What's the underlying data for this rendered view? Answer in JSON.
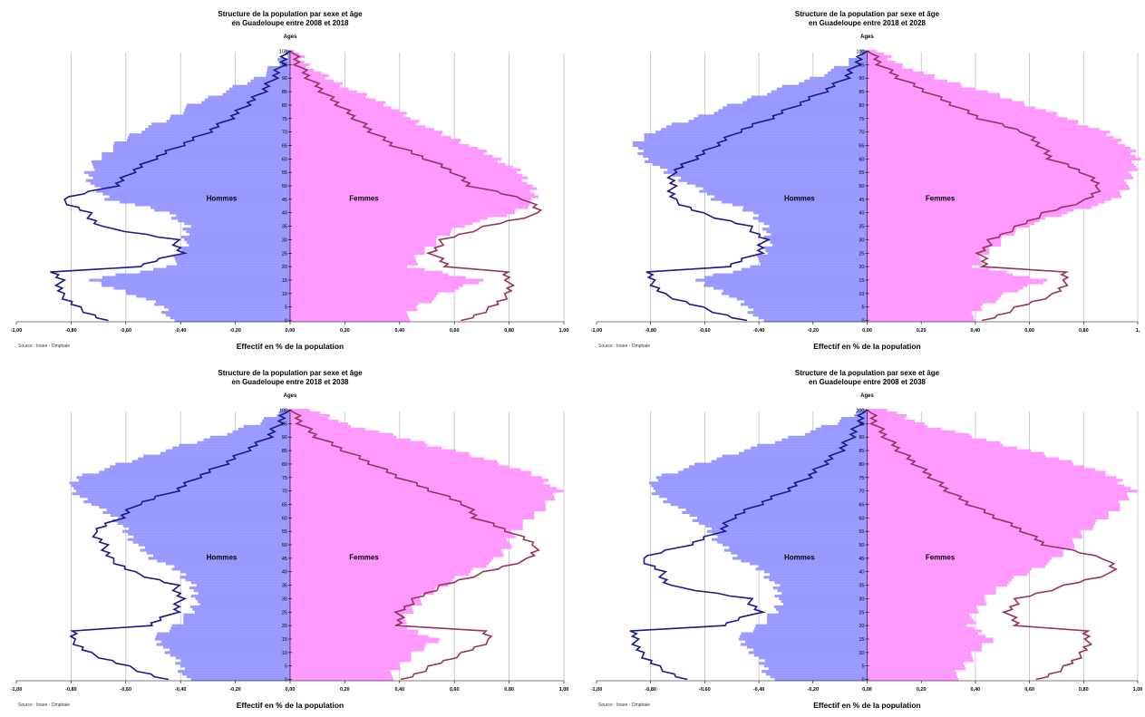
{
  "colors": {
    "men_bar": "#9999ff",
    "women_bar": "#ff99ff",
    "men_line": "#1a1a8a",
    "women_line": "#99335c",
    "grid": "#bfbfbf"
  },
  "chart_data": [
    {
      "type": "bar",
      "title_line1": "Structure de la population par sexe et âge",
      "title_line2": "en Guadeloupe entre 2008 et 2018",
      "age_axis_label": "Ages",
      "xlabel": "Effectif en % de la population",
      "source": "Source : Insee - Omphale",
      "x_ticks": [
        "-1,00",
        "-0,80",
        "-0,60",
        "-0,40",
        "-0,20",
        "0,00",
        "0,20",
        "0,40",
        "0,60",
        "0,80",
        "1,00"
      ],
      "age_ticks": [
        0,
        5,
        10,
        15,
        20,
        25,
        30,
        35,
        40,
        45,
        50,
        55,
        60,
        65,
        70,
        75,
        80,
        85,
        90,
        95,
        100
      ],
      "xlim": [
        -1,
        1
      ],
      "ylim": [
        0,
        100
      ],
      "men_label": "Hommes",
      "women_label": "Femmes",
      "men_bars": {
        "ages": [
          0,
          5,
          10,
          15,
          20,
          25,
          30,
          35,
          40,
          45,
          50,
          55,
          60,
          65,
          70,
          75,
          80,
          85,
          90,
          95,
          100
        ],
        "values": [
          0.44,
          0.46,
          0.58,
          0.74,
          0.44,
          0.4,
          0.38,
          0.38,
          0.44,
          0.66,
          0.72,
          0.74,
          0.7,
          0.64,
          0.56,
          0.44,
          0.36,
          0.24,
          0.12,
          0.05,
          0.01
        ]
      },
      "women_bars": {
        "ages": [
          0,
          5,
          10,
          15,
          20,
          25,
          30,
          35,
          40,
          45,
          50,
          55,
          60,
          65,
          70,
          75,
          80,
          85,
          90,
          95,
          100
        ],
        "values": [
          0.42,
          0.46,
          0.56,
          0.7,
          0.44,
          0.48,
          0.54,
          0.62,
          0.82,
          0.9,
          0.88,
          0.84,
          0.76,
          0.66,
          0.54,
          0.44,
          0.36,
          0.24,
          0.14,
          0.06,
          0.02
        ]
      },
      "men_line": {
        "ages": [
          0,
          5,
          10,
          15,
          18,
          20,
          25,
          30,
          35,
          40,
          45,
          50,
          55,
          60,
          65,
          70,
          75,
          80,
          85,
          90,
          95,
          100
        ],
        "values": [
          0.68,
          0.78,
          0.84,
          0.84,
          0.86,
          0.56,
          0.4,
          0.42,
          0.7,
          0.74,
          0.84,
          0.64,
          0.58,
          0.5,
          0.4,
          0.3,
          0.22,
          0.16,
          0.1,
          0.06,
          0.03,
          0.01
        ]
      },
      "women_line": {
        "ages": [
          0,
          5,
          10,
          15,
          18,
          20,
          25,
          30,
          35,
          40,
          45,
          50,
          55,
          60,
          65,
          70,
          75,
          80,
          85,
          90,
          95,
          100
        ],
        "values": [
          0.64,
          0.74,
          0.8,
          0.8,
          0.78,
          0.58,
          0.52,
          0.56,
          0.72,
          0.92,
          0.86,
          0.66,
          0.6,
          0.5,
          0.38,
          0.3,
          0.24,
          0.18,
          0.12,
          0.07,
          0.03,
          0.01
        ]
      }
    },
    {
      "type": "bar",
      "title_line1": "Structure de la population par sexe et âge",
      "title_line2": "en Guadeloupe entre 2018 et 2028",
      "age_axis_label": "Ages",
      "xlabel": "Effectif en % de la population",
      "source": "Source : Insee - Omphale",
      "x_ticks": [
        "-1,00",
        "-0,80",
        "-0,60",
        "-0,40",
        "-0,20",
        "0,00",
        "0,20",
        "0,40",
        "0,60",
        "0,80",
        "1,"
      ],
      "age_ticks": [
        0,
        5,
        10,
        15,
        20,
        25,
        30,
        35,
        40,
        45,
        50,
        55,
        60,
        65,
        70,
        75,
        80,
        85,
        90,
        95,
        100
      ],
      "xlim": [
        -1,
        1
      ],
      "ylim": [
        0,
        100
      ],
      "men_label": "Hommes",
      "women_label": "Femmes",
      "men_bars": {
        "ages": [
          0,
          5,
          10,
          15,
          20,
          25,
          30,
          35,
          40,
          45,
          50,
          55,
          60,
          65,
          70,
          75,
          80,
          85,
          90,
          95,
          100
        ],
        "values": [
          0.4,
          0.44,
          0.52,
          0.64,
          0.42,
          0.38,
          0.36,
          0.38,
          0.42,
          0.56,
          0.64,
          0.74,
          0.82,
          0.86,
          0.8,
          0.64,
          0.5,
          0.36,
          0.2,
          0.08,
          0.02
        ]
      },
      "women_bars": {
        "ages": [
          0,
          5,
          10,
          15,
          20,
          25,
          30,
          35,
          40,
          45,
          50,
          55,
          60,
          65,
          70,
          75,
          80,
          85,
          90,
          95,
          100
        ],
        "values": [
          0.38,
          0.42,
          0.52,
          0.66,
          0.4,
          0.44,
          0.5,
          0.58,
          0.74,
          0.92,
          0.96,
          0.98,
          1.0,
          0.96,
          0.88,
          0.74,
          0.6,
          0.44,
          0.26,
          0.12,
          0.04
        ]
      },
      "men_line": {
        "ages": [
          0,
          5,
          10,
          15,
          18,
          20,
          25,
          30,
          35,
          40,
          45,
          50,
          55,
          60,
          65,
          70,
          75,
          80,
          85,
          90,
          95,
          100
        ],
        "values": [
          0.46,
          0.62,
          0.76,
          0.8,
          0.8,
          0.52,
          0.4,
          0.38,
          0.44,
          0.62,
          0.72,
          0.72,
          0.72,
          0.64,
          0.56,
          0.48,
          0.36,
          0.26,
          0.16,
          0.08,
          0.04,
          0.01
        ]
      },
      "women_line": {
        "ages": [
          0,
          5,
          10,
          15,
          18,
          20,
          25,
          30,
          35,
          40,
          45,
          50,
          55,
          60,
          65,
          70,
          75,
          80,
          85,
          90,
          95,
          100
        ],
        "values": [
          0.44,
          0.56,
          0.7,
          0.74,
          0.72,
          0.44,
          0.42,
          0.46,
          0.56,
          0.66,
          0.82,
          0.86,
          0.8,
          0.68,
          0.64,
          0.58,
          0.42,
          0.32,
          0.22,
          0.12,
          0.05,
          0.01
        ]
      }
    },
    {
      "type": "bar",
      "title_line1": "Structure de la population par sexe et âge",
      "title_line2": "en Guadeloupe entre 2018 et 2038",
      "age_axis_label": "Ages",
      "xlabel": "Effectif en % de la population",
      "source": "Source : Insee - Omphale",
      "x_ticks": [
        "-1,00",
        "-0,80",
        "-0,60",
        "-0,40",
        "-0,20",
        "0,00",
        "0,20",
        "0,40",
        "0,60",
        "0,80",
        "1,00"
      ],
      "age_ticks": [
        0,
        5,
        10,
        15,
        20,
        25,
        30,
        35,
        40,
        45,
        50,
        55,
        60,
        65,
        70,
        75,
        80,
        85,
        90,
        95,
        100
      ],
      "xlim": [
        -1,
        1
      ],
      "ylim": [
        0,
        100
      ],
      "men_label": "Hommes",
      "women_label": "Femmes",
      "men_bars": {
        "ages": [
          0,
          5,
          10,
          15,
          20,
          25,
          30,
          35,
          40,
          45,
          50,
          55,
          60,
          65,
          70,
          75,
          80,
          85,
          90,
          95,
          100
        ],
        "values": [
          0.38,
          0.4,
          0.44,
          0.5,
          0.42,
          0.36,
          0.34,
          0.36,
          0.4,
          0.5,
          0.56,
          0.6,
          0.64,
          0.72,
          0.8,
          0.78,
          0.62,
          0.46,
          0.28,
          0.12,
          0.03
        ]
      },
      "women_bars": {
        "ages": [
          0,
          5,
          10,
          15,
          20,
          25,
          30,
          35,
          40,
          45,
          50,
          55,
          60,
          65,
          70,
          75,
          80,
          85,
          90,
          95,
          100
        ],
        "values": [
          0.36,
          0.4,
          0.46,
          0.54,
          0.4,
          0.44,
          0.48,
          0.56,
          0.66,
          0.76,
          0.8,
          0.82,
          0.88,
          0.94,
          0.98,
          0.92,
          0.78,
          0.6,
          0.4,
          0.2,
          0.08
        ]
      },
      "men_line": {
        "ages": [
          0,
          5,
          10,
          15,
          18,
          20,
          25,
          30,
          35,
          40,
          45,
          50,
          55,
          60,
          65,
          70,
          75,
          80,
          85,
          90,
          95,
          100
        ],
        "values": [
          0.46,
          0.6,
          0.74,
          0.8,
          0.78,
          0.52,
          0.42,
          0.4,
          0.42,
          0.58,
          0.66,
          0.68,
          0.72,
          0.62,
          0.56,
          0.42,
          0.34,
          0.24,
          0.16,
          0.08,
          0.04,
          0.01
        ]
      },
      "women_line": {
        "ages": [
          0,
          5,
          10,
          15,
          18,
          20,
          25,
          30,
          35,
          40,
          45,
          50,
          55,
          60,
          65,
          70,
          75,
          80,
          85,
          90,
          95,
          100
        ],
        "values": [
          0.42,
          0.52,
          0.64,
          0.74,
          0.7,
          0.4,
          0.4,
          0.46,
          0.56,
          0.72,
          0.88,
          0.9,
          0.8,
          0.68,
          0.64,
          0.52,
          0.4,
          0.3,
          0.2,
          0.1,
          0.04,
          0.01
        ]
      }
    },
    {
      "type": "bar",
      "title_line1": "Structure de la population par sexe et âge",
      "title_line2": "en Guadeloupe entre 2008 et 2038",
      "age_axis_label": "Ages",
      "xlabel": "Effectif en % de la population",
      "source": "Source : Insee - Omphale",
      "x_ticks": [
        "-1,00",
        "-0,80",
        "-0,60",
        "-0,40",
        "-0,20",
        "0,00",
        "0,20",
        "0,40",
        "0,60",
        "0,80",
        "1,00"
      ],
      "age_ticks": [
        0,
        5,
        10,
        15,
        20,
        25,
        30,
        35,
        40,
        45,
        50,
        55,
        60,
        65,
        70,
        75,
        80,
        85,
        90,
        95,
        100
      ],
      "xlim": [
        -1,
        1
      ],
      "ylim": [
        0,
        100
      ],
      "men_label": "Hommes",
      "women_label": "Femmes",
      "men_bars": {
        "ages": [
          0,
          5,
          10,
          15,
          20,
          25,
          30,
          35,
          40,
          45,
          50,
          55,
          60,
          65,
          70,
          75,
          80,
          85,
          90,
          95,
          100
        ],
        "values": [
          0.36,
          0.38,
          0.42,
          0.48,
          0.4,
          0.34,
          0.32,
          0.34,
          0.38,
          0.48,
          0.54,
          0.58,
          0.64,
          0.72,
          0.8,
          0.78,
          0.62,
          0.46,
          0.28,
          0.12,
          0.03
        ]
      },
      "women_bars": {
        "ages": [
          0,
          5,
          10,
          15,
          20,
          25,
          30,
          35,
          40,
          45,
          50,
          55,
          60,
          65,
          70,
          75,
          80,
          85,
          90,
          95,
          100
        ],
        "values": [
          0.32,
          0.36,
          0.4,
          0.46,
          0.38,
          0.4,
          0.44,
          0.5,
          0.6,
          0.7,
          0.76,
          0.8,
          0.88,
          0.94,
          0.98,
          0.92,
          0.78,
          0.6,
          0.4,
          0.2,
          0.08
        ]
      },
      "men_line": {
        "ages": [
          0,
          5,
          10,
          15,
          18,
          20,
          25,
          30,
          35,
          40,
          45,
          50,
          55,
          60,
          65,
          70,
          75,
          80,
          85,
          90,
          95,
          100
        ],
        "values": [
          0.68,
          0.78,
          0.84,
          0.86,
          0.86,
          0.54,
          0.4,
          0.44,
          0.74,
          0.76,
          0.84,
          0.66,
          0.54,
          0.5,
          0.4,
          0.3,
          0.22,
          0.16,
          0.1,
          0.06,
          0.03,
          0.01
        ]
      },
      "women_line": {
        "ages": [
          0,
          5,
          10,
          15,
          18,
          20,
          25,
          30,
          35,
          40,
          45,
          50,
          55,
          60,
          65,
          70,
          75,
          80,
          85,
          90,
          95,
          100
        ],
        "values": [
          0.64,
          0.74,
          0.8,
          0.82,
          0.8,
          0.56,
          0.52,
          0.56,
          0.74,
          0.92,
          0.88,
          0.66,
          0.58,
          0.48,
          0.38,
          0.3,
          0.24,
          0.18,
          0.12,
          0.07,
          0.03,
          0.01
        ]
      }
    }
  ]
}
